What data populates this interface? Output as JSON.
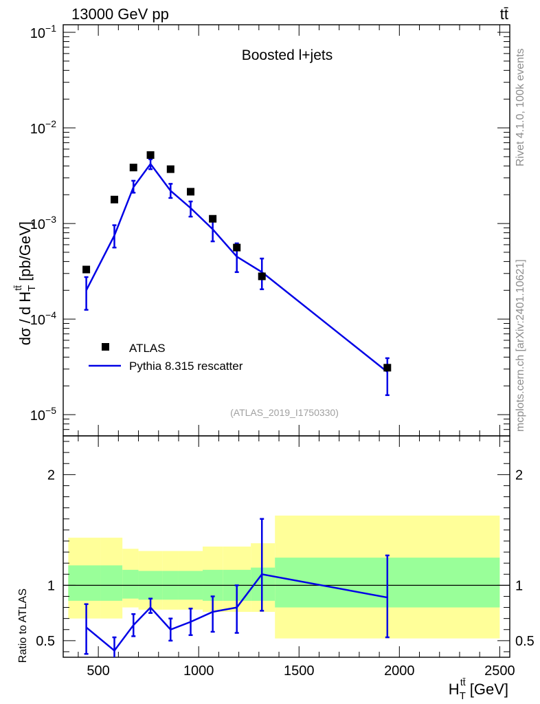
{
  "header": {
    "energy_label": "13000 GeV pp",
    "process_label": "tt̄"
  },
  "side_labels": {
    "rivet": "Rivet 4.1.0,  100k events",
    "mcplots": "mcplots.cern.ch [arXiv:2401.10621]"
  },
  "chart_data": [
    {
      "type": "line",
      "panel": "main",
      "title": "Boosted l+jets",
      "watermark": "(ATLAS_2019_I1750330)",
      "ylabel_parts": {
        "main": "dσ / d H",
        "sup": "tt̄",
        "sub": "T",
        "unit": " [pb/GeV]"
      },
      "xlabel_parts": {
        "main": "H",
        "sup": "tt̄",
        "sub": "T",
        "unit": " [GeV]"
      },
      "yscale": "log",
      "ylim": [
        6e-06,
        0.12
      ],
      "xlim": [
        325,
        2550
      ],
      "y_tick_labels": [
        {
          "base": "10",
          "exp": "−1",
          "value": 0.1
        },
        {
          "base": "10",
          "exp": "−2",
          "value": 0.01
        },
        {
          "base": "10",
          "exp": "−3",
          "value": 0.001
        },
        {
          "base": "10",
          "exp": "−4",
          "value": 0.0001
        },
        {
          "base": "10",
          "exp": "−5",
          "value": 1e-05
        }
      ],
      "legend": {
        "position": "bottom-left",
        "entries": [
          "ATLAS",
          "Pythia 8.315 rescatter"
        ]
      },
      "series": [
        {
          "name": "ATLAS",
          "style": "markers",
          "color": "#000000",
          "x": [
            440,
            580,
            675,
            760,
            860,
            960,
            1070,
            1190,
            1315,
            1940
          ],
          "y": [
            0.00033,
            0.00178,
            0.00385,
            0.0052,
            0.0037,
            0.00215,
            0.00112,
            0.00056,
            0.00028,
            3.1e-05
          ]
        },
        {
          "name": "Pythia 8.315 rescatter",
          "style": "line",
          "color": "#0000e6",
          "x": [
            440,
            580,
            675,
            760,
            860,
            960,
            1070,
            1190,
            1315,
            1940
          ],
          "y": [
            0.0002,
            0.00075,
            0.0024,
            0.0042,
            0.0022,
            0.00145,
            0.00087,
            0.00045,
            0.00031,
            2.8e-05
          ],
          "err_low": [
            0.000125,
            0.00056,
            0.0021,
            0.0037,
            0.00185,
            0.00118,
            0.00065,
            0.00031,
            0.000205,
            1.6e-05
          ],
          "err_high": [
            0.000275,
            0.00096,
            0.0028,
            0.0047,
            0.0026,
            0.0017,
            0.00108,
            0.00062,
            0.00043,
            3.9e-05
          ]
        }
      ]
    },
    {
      "type": "line",
      "panel": "ratio",
      "ylabel": "Ratio to ATLAS",
      "ylim": [
        0.35,
        2.35
      ],
      "xlim": [
        325,
        2550
      ],
      "y_tick_labels": [
        "0.5",
        "1",
        "2"
      ],
      "y_tick_values": [
        0.5,
        1,
        2
      ],
      "x_tick_labels": [
        "500",
        "1000",
        "1500",
        "2000",
        "2500"
      ],
      "x_tick_values": [
        500,
        1000,
        1500,
        2000,
        2500
      ],
      "reference_line": 1,
      "uncertainty_bands": {
        "bin_edges": [
          350,
          510,
          620,
          700,
          820,
          900,
          1020,
          1120,
          1260,
          1380,
          2500
        ],
        "yellow_low": [
          0.7,
          0.7,
          0.8,
          0.78,
          0.78,
          0.78,
          0.76,
          0.76,
          0.76,
          0.52
        ],
        "yellow_high": [
          1.43,
          1.43,
          1.33,
          1.31,
          1.31,
          1.31,
          1.35,
          1.35,
          1.38,
          1.63
        ],
        "green_low": [
          0.86,
          0.86,
          0.88,
          0.87,
          0.87,
          0.87,
          0.86,
          0.86,
          0.86,
          0.8
        ],
        "green_high": [
          1.18,
          1.18,
          1.14,
          1.13,
          1.13,
          1.13,
          1.14,
          1.14,
          1.16,
          1.25
        ],
        "colors": {
          "yellow": "#ffff99",
          "green": "#99ff99"
        }
      },
      "series": [
        {
          "name": "Pythia 8.315 rescatter / ATLAS",
          "color": "#0000e6",
          "x": [
            440,
            580,
            675,
            760,
            860,
            960,
            1070,
            1190,
            1315,
            1940
          ],
          "y": [
            0.62,
            0.41,
            0.64,
            0.8,
            0.6,
            0.67,
            0.76,
            0.8,
            1.1,
            0.89
          ],
          "err_low": [
            0.38,
            0.31,
            0.54,
            0.75,
            0.5,
            0.55,
            0.58,
            0.57,
            0.77,
            0.53
          ],
          "err_high": [
            0.83,
            0.53,
            0.74,
            0.88,
            0.7,
            0.79,
            0.9,
            1.0,
            1.6,
            1.27
          ]
        }
      ]
    }
  ]
}
